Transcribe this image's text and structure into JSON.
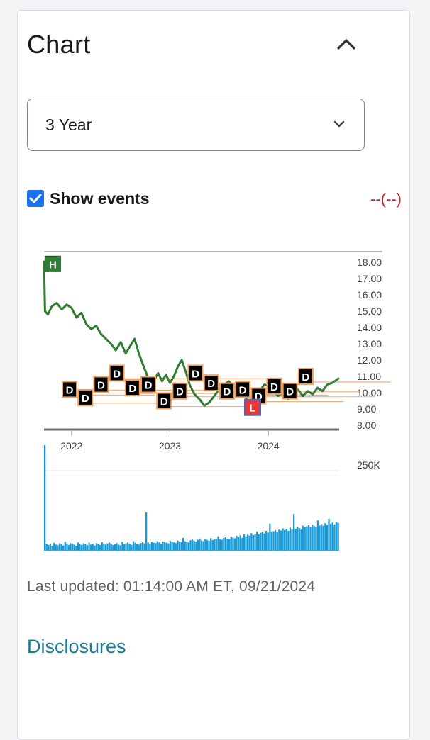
{
  "panel": {
    "title": "Chart",
    "range_select": {
      "value": "3 Year"
    },
    "show_events": {
      "label": "Show events",
      "checked": true
    },
    "change_text": "--(--)",
    "last_updated": "Last updated: 01:14:00 AM ET, 09/21/2024",
    "disclosures": "Disclosures"
  },
  "colors": {
    "price_line": "#2e7d32",
    "volume": "#1a9bd7",
    "event_fill": "#000000",
    "event_border": "#f0a060",
    "high_marker": "#2e7d32",
    "low_marker": "#e53935",
    "negative": "#c0282d",
    "link": "#177a96"
  },
  "icons": {
    "collapse": "chevron-up-icon",
    "select": "chevron-down-icon",
    "checkbox": "check-icon"
  },
  "chart_data": {
    "type": "line",
    "x_ticks": [
      "2022",
      "2023",
      "2024"
    ],
    "y_ticks": [
      "18.00",
      "17.00",
      "16.00",
      "15.00",
      "14.00",
      "13.00",
      "12.00",
      "11.00",
      "10.00",
      "9.00",
      "8.00"
    ],
    "ylim": [
      8,
      18.5
    ],
    "price_series": [
      [
        2021.72,
        18.1
      ],
      [
        2021.73,
        15.0
      ],
      [
        2021.76,
        14.8
      ],
      [
        2021.8,
        15.3
      ],
      [
        2021.85,
        15.5
      ],
      [
        2021.9,
        15.1
      ],
      [
        2021.95,
        15.4
      ],
      [
        2022.0,
        15.2
      ],
      [
        2022.05,
        14.6
      ],
      [
        2022.1,
        14.9
      ],
      [
        2022.15,
        14.2
      ],
      [
        2022.2,
        13.9
      ],
      [
        2022.25,
        14.1
      ],
      [
        2022.3,
        13.6
      ],
      [
        2022.35,
        13.3
      ],
      [
        2022.4,
        13.0
      ],
      [
        2022.45,
        12.6
      ],
      [
        2022.5,
        13.1
      ],
      [
        2022.55,
        12.4
      ],
      [
        2022.6,
        12.9
      ],
      [
        2022.64,
        13.3
      ],
      [
        2022.68,
        12.5
      ],
      [
        2022.72,
        11.8
      ],
      [
        2022.76,
        11.2
      ],
      [
        2022.8,
        10.4
      ],
      [
        2022.84,
        10.8
      ],
      [
        2022.88,
        11.2
      ],
      [
        2022.92,
        10.7
      ],
      [
        2022.96,
        11.1
      ],
      [
        2023.0,
        10.6
      ],
      [
        2023.04,
        11.0
      ],
      [
        2023.08,
        11.6
      ],
      [
        2023.12,
        12.0
      ],
      [
        2023.16,
        11.3
      ],
      [
        2023.2,
        10.5
      ],
      [
        2023.25,
        9.9
      ],
      [
        2023.3,
        9.6
      ],
      [
        2023.35,
        9.2
      ],
      [
        2023.4,
        9.4
      ],
      [
        2023.45,
        9.8
      ],
      [
        2023.5,
        10.2
      ],
      [
        2023.55,
        10.5
      ],
      [
        2023.6,
        10.7
      ],
      [
        2023.65,
        10.3
      ],
      [
        2023.7,
        10.6
      ],
      [
        2023.75,
        10.0
      ],
      [
        2023.8,
        9.3
      ],
      [
        2023.84,
        9.1
      ],
      [
        2023.88,
        9.7
      ],
      [
        2023.92,
        10.2
      ],
      [
        2023.96,
        10.5
      ],
      [
        2024.0,
        10.4
      ],
      [
        2024.05,
        10.1
      ],
      [
        2024.1,
        9.8
      ],
      [
        2024.15,
        10.0
      ],
      [
        2024.2,
        9.6
      ],
      [
        2024.25,
        9.9
      ],
      [
        2024.3,
        10.2
      ],
      [
        2024.35,
        9.8
      ],
      [
        2024.4,
        10.1
      ],
      [
        2024.45,
        9.9
      ],
      [
        2024.5,
        10.3
      ],
      [
        2024.55,
        10.1
      ],
      [
        2024.6,
        10.5
      ],
      [
        2024.65,
        10.6
      ],
      [
        2024.72,
        10.9
      ]
    ],
    "events": [
      {
        "label": "D",
        "x": 2021.98,
        "y": 10.2
      },
      {
        "label": "D",
        "x": 2022.14,
        "y": 9.7
      },
      {
        "label": "D",
        "x": 2022.3,
        "y": 10.5
      },
      {
        "label": "D",
        "x": 2022.46,
        "y": 11.2
      },
      {
        "label": "D",
        "x": 2022.62,
        "y": 10.3
      },
      {
        "label": "D",
        "x": 2022.78,
        "y": 10.5
      },
      {
        "label": "D",
        "x": 2022.94,
        "y": 9.5
      },
      {
        "label": "D",
        "x": 2023.1,
        "y": 10.1
      },
      {
        "label": "D",
        "x": 2023.26,
        "y": 11.2
      },
      {
        "label": "D",
        "x": 2023.42,
        "y": 10.6
      },
      {
        "label": "D",
        "x": 2023.58,
        "y": 10.1
      },
      {
        "label": "D",
        "x": 2023.74,
        "y": 10.2
      },
      {
        "label": "D",
        "x": 2023.9,
        "y": 9.8
      },
      {
        "label": "D",
        "x": 2024.06,
        "y": 10.4
      },
      {
        "label": "D",
        "x": 2024.22,
        "y": 10.1
      },
      {
        "label": "D",
        "x": 2024.38,
        "y": 11.0
      }
    ],
    "high_marker": {
      "label": "H",
      "x": 2021.73,
      "y": 17.9
    },
    "low_marker": {
      "label": "L",
      "x": 2023.84,
      "y": 9.1
    },
    "volume_label": "250K",
    "volume_ylim": [
      0,
      330
    ],
    "volume": [
      330,
      20,
      18,
      22,
      15,
      25,
      19,
      17,
      23,
      21,
      16,
      28,
      20,
      18,
      24,
      22,
      19,
      15,
      26,
      21,
      18,
      23,
      20,
      17,
      25,
      19,
      22,
      16,
      24,
      20,
      18,
      27,
      21,
      19,
      23,
      26,
      22,
      18,
      20,
      24,
      19,
      17,
      28,
      21,
      23,
      26,
      20,
      18,
      30,
      25,
      22,
      19,
      24,
      27,
      23,
      120,
      26,
      21,
      28,
      25,
      24,
      30,
      26,
      22,
      29,
      27,
      25,
      23,
      31,
      28,
      26,
      24,
      32,
      29,
      27,
      40,
      30,
      28,
      26,
      33,
      35,
      31,
      29,
      34,
      38,
      32,
      30,
      36,
      34,
      31,
      39,
      33,
      35,
      37,
      45,
      36,
      34,
      40,
      42,
      38,
      36,
      44,
      41,
      39,
      46,
      43,
      48,
      40,
      52,
      45,
      50,
      47,
      55,
      49,
      53,
      60,
      51,
      56,
      58,
      54,
      62,
      57,
      85,
      59,
      61,
      64,
      58,
      66,
      63,
      70,
      65,
      68,
      62,
      72,
      67,
      115,
      69,
      74,
      71,
      66,
      78,
      73,
      76,
      80,
      75,
      82,
      77,
      74,
      95,
      79,
      83,
      78,
      86,
      81,
      100,
      84,
      88,
      82,
      90,
      87
    ]
  }
}
